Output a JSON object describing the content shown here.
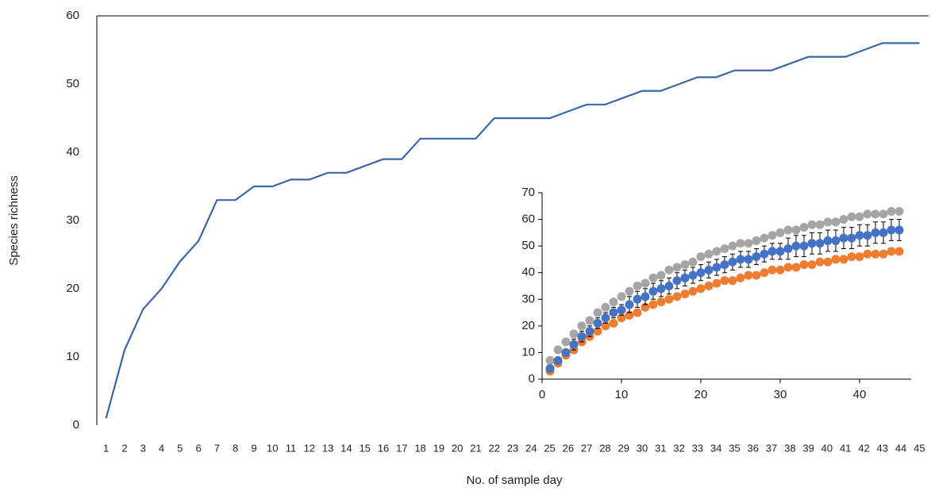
{
  "chart_data": [
    {
      "type": "line",
      "xlabel": "No. of sample day",
      "ylabel": "Species richness",
      "categories": [
        1,
        2,
        3,
        4,
        5,
        6,
        7,
        8,
        9,
        10,
        11,
        12,
        13,
        14,
        15,
        16,
        17,
        18,
        19,
        20,
        21,
        22,
        23,
        24,
        25,
        26,
        27,
        28,
        29,
        30,
        31,
        32,
        33,
        34,
        35,
        36,
        37,
        38,
        39,
        40,
        41,
        42,
        43,
        44,
        45
      ],
      "values": [
        1,
        11,
        17,
        20,
        24,
        27,
        33,
        33,
        35,
        35,
        36,
        36,
        37,
        37,
        38,
        39,
        39,
        42,
        42,
        42,
        42,
        45,
        45,
        45,
        45,
        46,
        47,
        47,
        48,
        49,
        49,
        50,
        51,
        51,
        52,
        52,
        52,
        53,
        54,
        54,
        54,
        55,
        56,
        56,
        56
      ],
      "color": "#3a67a6",
      "ylim": [
        0,
        60
      ],
      "yticks": [
        0,
        10,
        20,
        30,
        40,
        50,
        60
      ]
    },
    {
      "type": "scatter",
      "x": [
        1,
        2,
        3,
        4,
        5,
        6,
        7,
        8,
        9,
        10,
        11,
        12,
        13,
        14,
        15,
        16,
        17,
        18,
        19,
        20,
        21,
        22,
        23,
        24,
        25,
        26,
        27,
        28,
        29,
        30,
        31,
        32,
        33,
        34,
        35,
        36,
        37,
        38,
        39,
        40,
        41,
        42,
        43,
        44,
        45
      ],
      "xlim": [
        0,
        46.5
      ],
      "xticks": [
        0,
        10,
        20,
        30,
        40
      ],
      "ylim": [
        0,
        70
      ],
      "yticks": [
        0,
        10,
        20,
        30,
        40,
        50,
        60,
        70
      ],
      "series": [
        {
          "color": "#a5a5a5",
          "values": [
            7,
            11,
            14,
            17,
            20,
            22,
            25,
            27,
            29,
            31,
            33,
            35,
            36,
            38,
            39,
            41,
            42,
            43,
            44,
            46,
            47,
            48,
            49,
            50,
            51,
            51,
            52,
            53,
            54,
            55,
            56,
            56,
            57,
            58,
            58,
            59,
            59,
            60,
            61,
            61,
            62,
            62,
            62,
            63,
            63
          ]
        },
        {
          "color": "#ed7d31",
          "values": [
            3,
            6,
            9,
            11,
            14,
            16,
            18,
            20,
            21,
            23,
            24,
            25,
            27,
            28,
            29,
            30,
            31,
            32,
            33,
            34,
            35,
            36,
            37,
            37,
            38,
            39,
            39,
            40,
            41,
            41,
            42,
            42,
            43,
            43,
            44,
            44,
            45,
            45,
            46,
            46,
            47,
            47,
            47,
            48,
            48
          ]
        },
        {
          "color": "#4472c4",
          "values": [
            4,
            7,
            10,
            13,
            16,
            18,
            21,
            23,
            25,
            26,
            28,
            30,
            31,
            33,
            34,
            35,
            37,
            38,
            39,
            40,
            41,
            42,
            43,
            44,
            45,
            45,
            46,
            47,
            48,
            48,
            49,
            50,
            50,
            51,
            51,
            52,
            52,
            53,
            53,
            54,
            54,
            55,
            55,
            56,
            56
          ],
          "errors": [
            1,
            1,
            1,
            2,
            2,
            2,
            2,
            2,
            2,
            2,
            3,
            3,
            3,
            3,
            3,
            3,
            3,
            3,
            3,
            3,
            3,
            3,
            3,
            3,
            3,
            3,
            3,
            3,
            3,
            3,
            4,
            4,
            4,
            4,
            4,
            4,
            4,
            4,
            4,
            4,
            4,
            4,
            4,
            4,
            4
          ]
        }
      ]
    }
  ]
}
